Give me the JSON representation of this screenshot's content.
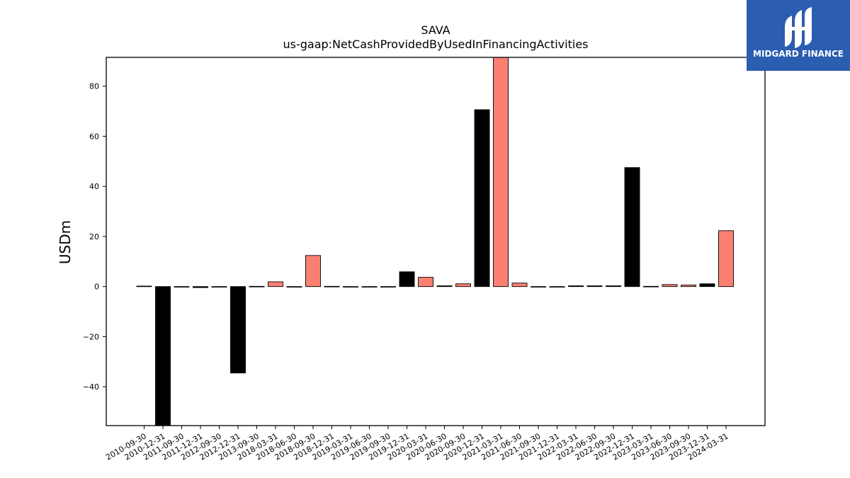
{
  "logo": {
    "text": "MIDGARD FINANCE"
  },
  "colors": {
    "series_a": "#000000",
    "series_b": "#fa8072",
    "logo_bg": "#2b5db0"
  },
  "chart_data": {
    "type": "bar",
    "title": "SAVA",
    "subtitle": "us-gaap:NetCashProvidedByUsedInFinancingActivities",
    "ylabel": "USDm",
    "xlabel": "",
    "ylim": [
      -55.5,
      91.5
    ],
    "yticks": [
      -40,
      -20,
      0,
      20,
      40,
      60,
      80
    ],
    "ytick_labels": [
      "−40",
      "−20",
      "0",
      "20",
      "40",
      "60",
      "80"
    ],
    "grid": false,
    "legend": "none",
    "categories": [
      "2010-09-30",
      "2010-12-31",
      "2011-09-30",
      "2011-12-31",
      "2012-09-30",
      "2012-12-31",
      "2013-09-30",
      "2018-03-31",
      "2018-06-30",
      "2018-09-30",
      "2018-12-31",
      "2019-03-31",
      "2019-06-30",
      "2019-09-30",
      "2019-12-31",
      "2020-03-31",
      "2020-06-30",
      "2020-09-30",
      "2020-12-31",
      "2021-03-31",
      "2021-06-30",
      "2021-09-30",
      "2021-12-31",
      "2022-03-31",
      "2022-06-30",
      "2022-09-30",
      "2022-12-31",
      "2023-03-31",
      "2023-06-30",
      "2023-09-30",
      "2023-12-31",
      "2024-03-31"
    ],
    "values": [
      0.2,
      -57,
      -0.2,
      -0.4,
      -0.2,
      -34.5,
      0.1,
      1.9,
      -0.1,
      12.4,
      0.1,
      -0.1,
      -0.1,
      -0.1,
      5.9,
      3.7,
      0.3,
      1.1,
      70.6,
      95,
      1.4,
      -0.1,
      -0.1,
      0.3,
      0.3,
      0.3,
      47.5,
      0.1,
      0.8,
      0.6,
      1.1,
      22.3
    ],
    "bar_colors": [
      "#000000",
      "#000000",
      "#000000",
      "#000000",
      "#000000",
      "#000000",
      "#000000",
      "#fa8072",
      "#000000",
      "#fa8072",
      "#000000",
      "#000000",
      "#000000",
      "#000000",
      "#000000",
      "#fa8072",
      "#000000",
      "#fa8072",
      "#000000",
      "#fa8072",
      "#fa8072",
      "#000000",
      "#000000",
      "#000000",
      "#000000",
      "#000000",
      "#000000",
      "#000000",
      "#fa8072",
      "#fa8072",
      "#000000",
      "#fa8072"
    ]
  }
}
